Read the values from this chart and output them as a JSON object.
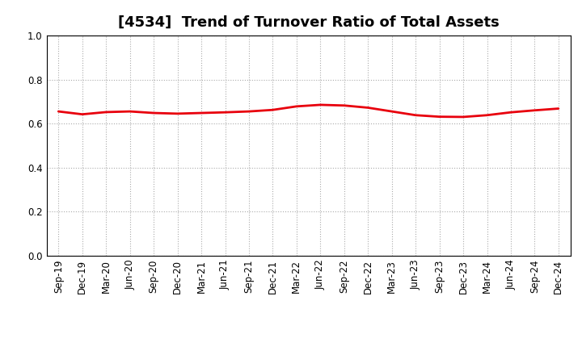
{
  "title": "[4534]  Trend of Turnover Ratio of Total Assets",
  "x_labels": [
    "Sep-19",
    "Dec-19",
    "Mar-20",
    "Jun-20",
    "Sep-20",
    "Dec-20",
    "Mar-21",
    "Jun-21",
    "Sep-21",
    "Dec-21",
    "Mar-22",
    "Jun-22",
    "Sep-22",
    "Dec-22",
    "Mar-23",
    "Jun-23",
    "Sep-23",
    "Dec-23",
    "Mar-24",
    "Jun-24",
    "Sep-24",
    "Dec-24"
  ],
  "y_values": [
    0.655,
    0.642,
    0.652,
    0.655,
    0.648,
    0.645,
    0.648,
    0.651,
    0.655,
    0.662,
    0.678,
    0.685,
    0.682,
    0.672,
    0.655,
    0.638,
    0.631,
    0.63,
    0.638,
    0.651,
    0.66,
    0.668
  ],
  "line_color": "#e8000d",
  "line_width": 2.0,
  "ylim": [
    0.0,
    1.0
  ],
  "yticks": [
    0.0,
    0.2,
    0.4,
    0.6,
    0.8,
    1.0
  ],
  "background_color": "#ffffff",
  "grid_color": "#aaaaaa",
  "title_fontsize": 13,
  "tick_fontsize": 8.5
}
